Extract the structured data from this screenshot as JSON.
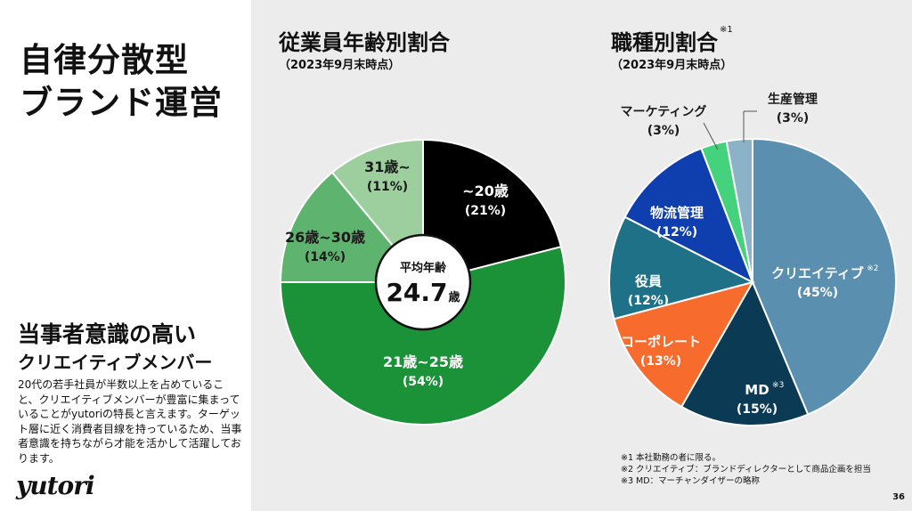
{
  "left": {
    "title_lines": [
      "自律分散型",
      "ブランド運営"
    ],
    "subheading_lines": [
      "当事者意識の高い",
      "クリエイティブメンバー"
    ],
    "body": "20代の若手社員が半数以上を占めていること、クリエイティブメンバーが豊富に集まっていることがyutoriの特長と言えます。ターゲット層に近く消費者目線を持っているため、当事者意識を持ちながら才能を活かして活躍しております。",
    "logo": "yutori"
  },
  "chart_data": [
    {
      "type": "pie",
      "title": "従業員年齢別割合",
      "subtitle": "（2023年9月末時点）",
      "center_label": "平均年齢",
      "center_value": "24.7",
      "center_unit": "歳",
      "slices": [
        {
          "label": "~20歳",
          "value": 21,
          "display": "(21%)",
          "color": "#000000",
          "text_color": "#ffffff"
        },
        {
          "label": "21歳~25歳",
          "value": 54,
          "display": "(54%)",
          "color": "#1b9138",
          "text_color": "#ffffff"
        },
        {
          "label": "26歳~30歳",
          "value": 14,
          "display": "(14%)",
          "color": "#5eb36e",
          "text_color": "#1a1a1a"
        },
        {
          "label": "31歳~",
          "value": 11,
          "display": "(11%)",
          "color": "#9ccf9d",
          "text_color": "#1a1a1a"
        }
      ]
    },
    {
      "type": "pie",
      "title": "職種別割合",
      "title_note": "※1",
      "subtitle": "（2023年9月末時点）",
      "slices": [
        {
          "label": "クリエイティブ",
          "note": "※2",
          "value": 45,
          "display": "(45%)",
          "color": "#5b8fb0",
          "text_color": "#ffffff"
        },
        {
          "label": "MD",
          "note": "※3",
          "value": 15,
          "display": "(15%)",
          "color": "#0b3a55",
          "text_color": "#ffffff"
        },
        {
          "label": "コーポレート",
          "value": 13,
          "display": "(13%)",
          "color": "#f76b2c",
          "text_color": "#ffffff"
        },
        {
          "label": "役員",
          "value": 12,
          "display": "(12%)",
          "color": "#1f7187",
          "text_color": "#ffffff"
        },
        {
          "label": "物流管理",
          "value": 12,
          "display": "(12%)",
          "color": "#0f3fae",
          "text_color": "#ffffff"
        },
        {
          "label": "マーケティング",
          "value": 3,
          "display": "(3%)",
          "color": "#44d37c",
          "text_color": "#1a1a1a"
        },
        {
          "label": "生産管理",
          "value": 3,
          "display": "(3%)",
          "color": "#8cb2c8",
          "text_color": "#1a1a1a"
        }
      ]
    }
  ],
  "notes": [
    "※1 本社勤務の者に限る。",
    "※2 クリエイティブ：ブランドディレクターとして商品企画を担当",
    "※3 MD：マーチャンダイザーの略称"
  ],
  "page_number": "36"
}
